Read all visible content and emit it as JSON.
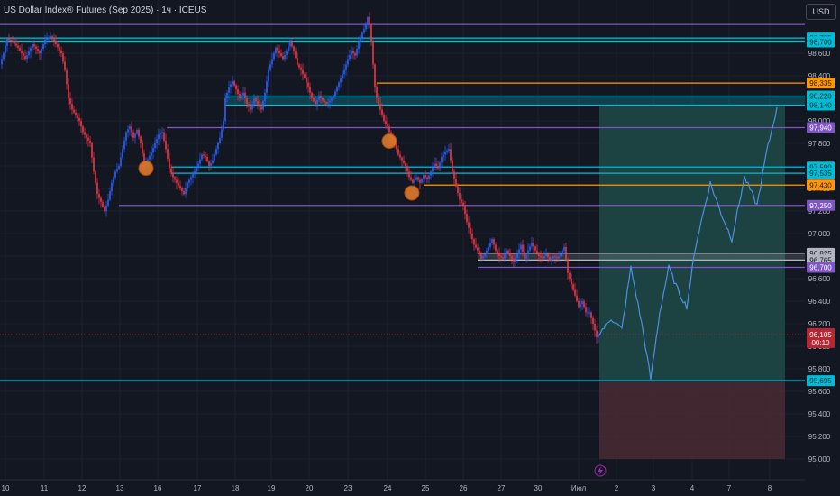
{
  "header": {
    "title": "US Dollar Index® Futures (Sep 2025) · 1ч · ICEUS",
    "currency": "USD"
  },
  "colors": {
    "background": "#131722",
    "bull": "#2962ff",
    "bear": "#f23645",
    "cyan": "#00bcd4",
    "orange": "#ff9800",
    "purple": "#7e57c2",
    "forecast": "#4a90e2",
    "target_zone": "#1e4a47",
    "stop_zone": "#4a2a33"
  },
  "icons": {
    "marker": "lightning-icon"
  },
  "chart_data": {
    "type": "candlestick",
    "title": "US Dollar Index® Futures (Sep 2025) · 1ч · ICEUS",
    "price_axis": {
      "ticks": [
        "98,600",
        "98,400",
        "98,200",
        "98,000",
        "97,800",
        "97,600",
        "97,400",
        "97,200",
        "97,000",
        "96,800",
        "96,600",
        "96,400",
        "96,200",
        "96,000",
        "95,800",
        "95,600",
        "95,400",
        "95,200",
        "95,000"
      ],
      "ylim": [
        94.96,
        98.88
      ]
    },
    "time_axis": {
      "labels": [
        "10",
        "11",
        "12",
        "13",
        "16",
        "17",
        "18",
        "19",
        "20",
        "23",
        "24",
        "25",
        "26",
        "27",
        "30",
        "Июл",
        "2",
        "3",
        "4",
        "7",
        "8"
      ]
    },
    "series": [
      {
        "name": "price_path",
        "points": [
          [
            0,
            98.5
          ],
          [
            4,
            98.6
          ],
          [
            8,
            98.73
          ],
          [
            14,
            98.7
          ],
          [
            20,
            98.65
          ],
          [
            28,
            98.55
          ],
          [
            36,
            98.68
          ],
          [
            44,
            98.6
          ],
          [
            50,
            98.72
          ],
          [
            56,
            98.75
          ],
          [
            62,
            98.68
          ],
          [
            68,
            98.6
          ],
          [
            72,
            98.45
          ],
          [
            76,
            98.2
          ],
          [
            80,
            98.1
          ],
          [
            84,
            98.05
          ],
          [
            88,
            98.0
          ],
          [
            92,
            97.9
          ],
          [
            96,
            97.85
          ],
          [
            100,
            97.8
          ],
          [
            104,
            97.55
          ],
          [
            108,
            97.35
          ],
          [
            112,
            97.28
          ],
          [
            116,
            97.2
          ],
          [
            120,
            97.3
          ],
          [
            124,
            97.45
          ],
          [
            128,
            97.55
          ],
          [
            132,
            97.6
          ],
          [
            136,
            97.75
          ],
          [
            140,
            97.9
          ],
          [
            144,
            97.95
          ],
          [
            148,
            97.85
          ],
          [
            152,
            97.92
          ],
          [
            156,
            97.8
          ],
          [
            160,
            97.62
          ],
          [
            164,
            97.66
          ],
          [
            168,
            97.72
          ],
          [
            172,
            97.8
          ],
          [
            176,
            97.88
          ],
          [
            180,
            97.9
          ],
          [
            184,
            97.75
          ],
          [
            188,
            97.58
          ],
          [
            192,
            97.5
          ],
          [
            196,
            97.45
          ],
          [
            200,
            97.4
          ],
          [
            204,
            97.35
          ],
          [
            208,
            97.45
          ],
          [
            212,
            97.5
          ],
          [
            216,
            97.55
          ],
          [
            220,
            97.62
          ],
          [
            224,
            97.7
          ],
          [
            228,
            97.68
          ],
          [
            232,
            97.6
          ],
          [
            236,
            97.65
          ],
          [
            240,
            97.75
          ],
          [
            244,
            97.85
          ],
          [
            248,
            98.0
          ],
          [
            250,
            98.2
          ],
          [
            254,
            98.3
          ],
          [
            258,
            98.35
          ],
          [
            262,
            98.28
          ],
          [
            266,
            98.2
          ],
          [
            270,
            98.25
          ],
          [
            274,
            98.15
          ],
          [
            278,
            98.1
          ],
          [
            282,
            98.2
          ],
          [
            286,
            98.15
          ],
          [
            290,
            98.1
          ],
          [
            294,
            98.25
          ],
          [
            298,
            98.45
          ],
          [
            302,
            98.55
          ],
          [
            306,
            98.65
          ],
          [
            310,
            98.6
          ],
          [
            314,
            98.55
          ],
          [
            318,
            98.62
          ],
          [
            322,
            98.7
          ],
          [
            326,
            98.62
          ],
          [
            330,
            98.5
          ],
          [
            334,
            98.45
          ],
          [
            338,
            98.38
          ],
          [
            342,
            98.3
          ],
          [
            346,
            98.2
          ],
          [
            350,
            98.15
          ],
          [
            354,
            98.22
          ],
          [
            358,
            98.18
          ],
          [
            362,
            98.15
          ],
          [
            366,
            98.18
          ],
          [
            370,
            98.22
          ],
          [
            374,
            98.3
          ],
          [
            378,
            98.38
          ],
          [
            382,
            98.45
          ],
          [
            386,
            98.55
          ],
          [
            390,
            98.62
          ],
          [
            394,
            98.58
          ],
          [
            398,
            98.7
          ],
          [
            402,
            98.78
          ],
          [
            406,
            98.85
          ],
          [
            408,
            98.92
          ],
          [
            410,
            98.85
          ],
          [
            412,
            98.7
          ],
          [
            414,
            98.5
          ],
          [
            416,
            98.3
          ],
          [
            418,
            98.2
          ],
          [
            422,
            98.1
          ],
          [
            426,
            98.0
          ],
          [
            430,
            97.95
          ],
          [
            434,
            97.85
          ],
          [
            438,
            97.8
          ],
          [
            442,
            97.7
          ],
          [
            446,
            97.65
          ],
          [
            450,
            97.6
          ],
          [
            454,
            97.5
          ],
          [
            458,
            97.45
          ],
          [
            462,
            97.5
          ],
          [
            466,
            97.45
          ],
          [
            470,
            97.52
          ],
          [
            474,
            97.48
          ],
          [
            478,
            97.55
          ],
          [
            482,
            97.62
          ],
          [
            486,
            97.58
          ],
          [
            490,
            97.68
          ],
          [
            494,
            97.72
          ],
          [
            498,
            97.75
          ],
          [
            502,
            97.55
          ],
          [
            506,
            97.42
          ],
          [
            510,
            97.3
          ],
          [
            514,
            97.25
          ],
          [
            518,
            97.1
          ],
          [
            522,
            97.0
          ],
          [
            526,
            96.9
          ],
          [
            530,
            96.85
          ],
          [
            534,
            96.78
          ],
          [
            538,
            96.82
          ],
          [
            542,
            96.88
          ],
          [
            546,
            96.95
          ],
          [
            550,
            96.85
          ],
          [
            554,
            96.8
          ],
          [
            558,
            96.78
          ],
          [
            562,
            96.85
          ],
          [
            566,
            96.8
          ],
          [
            570,
            96.75
          ],
          [
            574,
            96.82
          ],
          [
            578,
            96.9
          ],
          [
            582,
            96.78
          ],
          [
            586,
            96.85
          ],
          [
            590,
            96.92
          ],
          [
            594,
            96.85
          ],
          [
            598,
            96.8
          ],
          [
            602,
            96.78
          ],
          [
            606,
            96.82
          ],
          [
            610,
            96.76
          ],
          [
            614,
            96.8
          ],
          [
            618,
            96.78
          ],
          [
            622,
            96.82
          ],
          [
            626,
            96.88
          ],
          [
            630,
            96.65
          ],
          [
            634,
            96.55
          ],
          [
            638,
            96.45
          ],
          [
            642,
            96.35
          ],
          [
            646,
            96.4
          ],
          [
            650,
            96.3
          ],
          [
            654,
            96.3
          ],
          [
            658,
            96.2
          ],
          [
            662,
            96.08
          ],
          [
            665,
            96.12
          ]
        ]
      },
      {
        "name": "forecast_path",
        "points": [
          [
            665,
            96.12
          ],
          [
            672,
            96.18
          ],
          [
            678,
            96.25
          ],
          [
            684,
            96.2
          ],
          [
            690,
            96.15
          ],
          [
            700,
            96.7
          ],
          [
            712,
            96.2
          ],
          [
            722,
            95.71
          ],
          [
            732,
            96.3
          ],
          [
            742,
            96.7
          ],
          [
            752,
            96.5
          ],
          [
            762,
            96.35
          ],
          [
            772,
            96.9
          ],
          [
            788,
            97.45
          ],
          [
            800,
            97.18
          ],
          [
            812,
            96.95
          ],
          [
            826,
            97.5
          ],
          [
            840,
            97.25
          ],
          [
            850,
            97.7
          ],
          [
            862,
            98.12
          ]
        ]
      }
    ],
    "levels": [
      {
        "label": "",
        "value": 98.855,
        "color": "#7e57c2",
        "style": "line"
      },
      {
        "label": "98,735",
        "value": 98.735,
        "color": "#00bcd4",
        "style": "line"
      },
      {
        "label": "98,700",
        "value": 98.7,
        "color": "#00bcd4",
        "style": "line"
      },
      {
        "label": "98,335",
        "value": 98.335,
        "color": "#ff9800",
        "style": "line"
      },
      {
        "label": "98,220",
        "value": 98.22,
        "color": "#00bcd4",
        "style": "zone_top"
      },
      {
        "label": "98,140",
        "value": 98.14,
        "color": "#00bcd4",
        "style": "zone_bottom"
      },
      {
        "label": "97,940",
        "value": 97.94,
        "color": "#7e57c2",
        "style": "line"
      },
      {
        "label": "97,590",
        "value": 97.59,
        "color": "#00bcd4",
        "style": "line"
      },
      {
        "label": "97,535",
        "value": 97.535,
        "color": "#00bcd4",
        "style": "line"
      },
      {
        "label": "97,430",
        "value": 97.43,
        "color": "#ff9800",
        "style": "line"
      },
      {
        "label": "97,250",
        "value": 97.25,
        "color": "#7e57c2",
        "style": "line"
      },
      {
        "label": "96,825",
        "value": 96.825,
        "color": "#b2b5be",
        "style": "line"
      },
      {
        "label": "96,765",
        "value": 96.765,
        "color": "#b2b5be",
        "style": "line"
      },
      {
        "label": "96,700",
        "value": 96.7,
        "color": "#7e57c2",
        "style": "line"
      },
      {
        "label": "95,695",
        "value": 95.695,
        "color": "#00bcd4",
        "style": "line"
      }
    ],
    "current_price": {
      "label": "96,105",
      "countdown": "00:10",
      "value": 96.105
    },
    "position": {
      "entry": 95.695,
      "target": 98.14,
      "stop": 95.0
    },
    "markers": [
      {
        "x": 162,
        "value": 97.58
      },
      {
        "x": 432,
        "value": 97.82
      },
      {
        "x": 457,
        "value": 97.36
      }
    ]
  }
}
